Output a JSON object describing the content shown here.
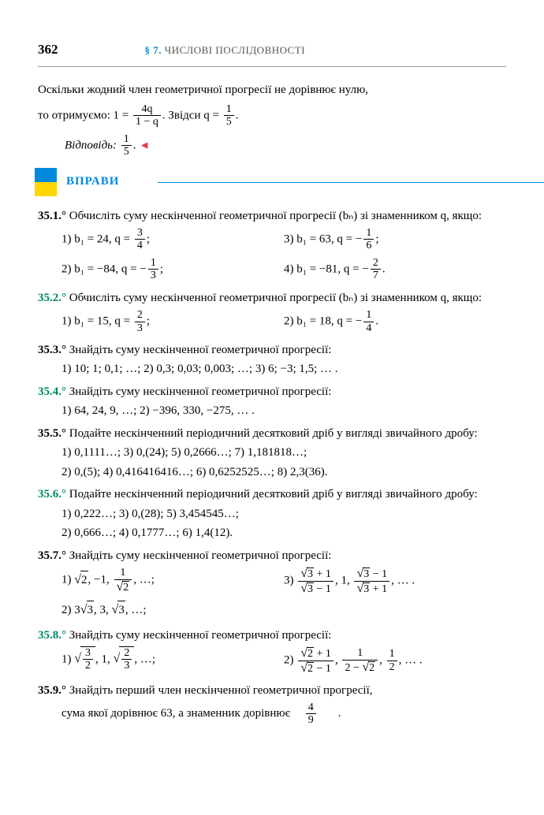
{
  "header": {
    "page_number": "362",
    "chapter_prefix": "§ 7.",
    "chapter_title": "ЧИСЛОВІ ПОСЛІДОВНОСТІ"
  },
  "intro": {
    "line1": "Оскільки жодний член геометричної прогресії не дорівнює нулю,",
    "line2_a": "то отримуємо: 1 = ",
    "line2_frac_num": "4q",
    "line2_frac_den": "1 − q",
    "line2_b": ". Звідси q = ",
    "line2_frac2_num": "1",
    "line2_frac2_den": "5",
    "line2_c": ".",
    "answer_label": "Відповідь:",
    "answer_frac_num": "1",
    "answer_frac_den": "5"
  },
  "banner": {
    "text": "ВПРАВИ"
  },
  "ex351": {
    "num": "35.1.°",
    "text": "Обчисліть суму нескінченної геометричної прогресії (bₙ) зі знаменником q, якщо:",
    "s1a": "1) b₁ = 24,  q = ",
    "s1_num": "3",
    "s1_den": "4",
    "s1b": ";",
    "s3a": "3) b₁ = 63,  q = −",
    "s3_num": "1",
    "s3_den": "6",
    "s3b": ";",
    "s2a": "2) b₁ = −84,  q = −",
    "s2_num": "1",
    "s2_den": "3",
    "s2b": ";",
    "s4a": "4) b₁ = −81,  q = −",
    "s4_num": "2",
    "s4_den": "7",
    "s4b": "."
  },
  "ex352": {
    "num": "35.2.°",
    "text": "Обчисліть суму нескінченної геометричної прогресії (bₙ) зі знаменником q, якщо:",
    "s1a": "1) b₁ = 15,  q = ",
    "s1_num": "2",
    "s1_den": "3",
    "s1b": ";",
    "s2a": "2) b₁ = 18,  q = −",
    "s2_num": "1",
    "s2_den": "4",
    "s2b": "."
  },
  "ex353": {
    "num": "35.3.°",
    "text": "Знайдіть суму нескінченної геометричної прогресії:",
    "line": "1) 10; 1; 0,1; …;    2) 0,3; 0,03; 0,003; …;    3) 6; −3; 1,5; … ."
  },
  "ex354": {
    "num": "35.4.°",
    "text": "Знайдіть суму нескінченної геометричної прогресії:",
    "line": "1) 64, 24, 9, …;                                      2) −396, 330, −275, … ."
  },
  "ex355": {
    "num": "35.5.°",
    "text": "Подайте нескінченний періодичний десятковий дріб у вигляді звичайного дробу:",
    "l1": "1) 0,1111…;    3) 0,(24);              5) 0,2666…;     7) 1,181818…;",
    "l2": "2) 0,(5);          4) 0,416416416…;  6) 0,6252525…;  8) 2,3(36)."
  },
  "ex356": {
    "num": "35.6.°",
    "text": "Подайте нескінченний періодичний десятковий дріб у вигляді звичайного дробу:",
    "l1": "1) 0,222…;               3) 0,(28);                 5) 3,454545…;",
    "l2": "2) 0,666…;               4) 0,1777…;              6) 1,4(12)."
  },
  "ex357": {
    "num": "35.7.°",
    "text": "Знайдіть суму нескінченної геометричної прогресії:"
  },
  "ex358": {
    "num": "35.8.°",
    "text": "Знайдіть суму нескінченної геометричної прогресії:"
  },
  "ex359": {
    "num": "35.9.°",
    "text_a": "Знайдіть перший член нескінченної геометричної прогресії,",
    "text_b": "сума якої дорівнює 63, а знаменник дорівнює ",
    "frac_num": "4",
    "frac_den": "9",
    "text_c": "."
  },
  "colors": {
    "blue": "#0088dd",
    "teal": "#008866",
    "red": "#e63946",
    "yellow": "#ffd500"
  }
}
